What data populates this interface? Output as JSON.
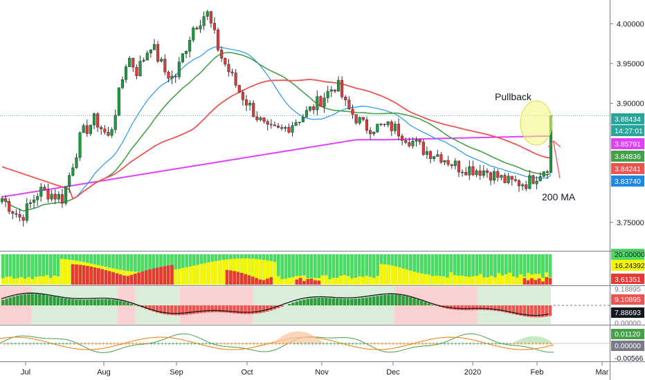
{
  "chart_data": {
    "type": "candlestick",
    "x_tick_labels": [
      "Jul",
      "Aug",
      "Sep",
      "Oct",
      "Nov",
      "Dec",
      "2020",
      "Feb",
      "Mar"
    ],
    "price_axis": {
      "ylim": [
        3.715,
        4.03
      ],
      "tick_labels": [
        "4.00000",
        "3.95000",
        "3.90000",
        "3.75000"
      ],
      "tick_values": [
        4.0,
        3.95,
        3.9,
        3.75
      ]
    },
    "last_price": 3.88434,
    "countdown": "14:27:01",
    "price_tags": [
      {
        "label": "3.88434",
        "value": 3.88434,
        "color": "#26a69a"
      },
      {
        "label": "3.85791",
        "value": 3.85791,
        "color": "#e040fb"
      },
      {
        "label": "3.84836",
        "value": 3.84836,
        "color": "#43a047"
      },
      {
        "label": "3.84241",
        "value": 3.84241,
        "color": "#ef5350"
      },
      {
        "label": "3.83740",
        "value": 3.8374,
        "color": "#1e88e5"
      }
    ],
    "moving_averages": [
      {
        "color": "#ef5350"
      },
      {
        "color": "#e040fb"
      },
      {
        "color": "#43a047"
      },
      {
        "color": "#2196f3"
      }
    ],
    "annotations": {
      "pullback": "Pullback",
      "ma200": "200 MA"
    },
    "panel1": {
      "labels": [
        "20.00000",
        "16.24392",
        "3.61351"
      ],
      "colors": {
        "green": "#4cd964",
        "yellow": "#f5f500",
        "red": "#e53935"
      }
    },
    "panel2": {
      "labels": [
        "9.18895",
        "9.10895",
        "7.88693",
        "0.00000"
      ]
    },
    "panel3": {
      "labels": [
        "0.01120",
        "0.00000",
        "-0.00566"
      ]
    },
    "colors": {
      "up": "#26a69a",
      "down": "#ef5350",
      "bull_candle": "#1b9e3c",
      "bear_candle": "#e53935"
    }
  }
}
